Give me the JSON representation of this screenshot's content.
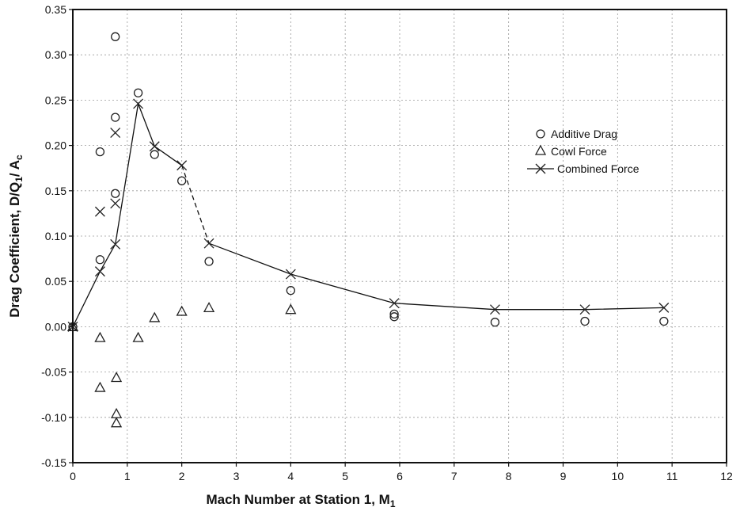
{
  "chart_data": {
    "type": "scatter",
    "xlabel": "Mach Number at Station 1, M",
    "xlabel_sub": "1",
    "ylabel": "Drag Coefficient, D/Q",
    "ylabel_sub1": "1",
    "ylabel_mid": "/ A",
    "ylabel_sub2": "c",
    "xlim": [
      0,
      12
    ],
    "ylim": [
      -0.15,
      0.35
    ],
    "x_ticks": [
      "0",
      "1",
      "2",
      "3",
      "4",
      "5",
      "6",
      "7",
      "8",
      "9",
      "10",
      "11",
      "12"
    ],
    "y_ticks": [
      "0.35",
      "0.30",
      "0.25",
      "0.20",
      "0.15",
      "0.10",
      "0.05",
      "0.00",
      "-0.05",
      "-0.10",
      "-0.15"
    ],
    "grid": true,
    "legend_position": "right",
    "series": [
      {
        "name": "Additive Drag",
        "marker": "circle",
        "points": [
          [
            0,
            0.0
          ],
          [
            0.5,
            0.193
          ],
          [
            0.5,
            0.074
          ],
          [
            0.78,
            0.32
          ],
          [
            0.78,
            0.231
          ],
          [
            0.78,
            0.147
          ],
          [
            1.2,
            0.258
          ],
          [
            1.5,
            0.19
          ],
          [
            2.0,
            0.161
          ],
          [
            2.5,
            0.072
          ],
          [
            4.0,
            0.04
          ],
          [
            5.9,
            0.014
          ],
          [
            5.9,
            0.011
          ],
          [
            7.75,
            0.005
          ],
          [
            9.4,
            0.006
          ],
          [
            10.85,
            0.006
          ]
        ]
      },
      {
        "name": "Cowl Force",
        "marker": "triangle",
        "points": [
          [
            0,
            0.0
          ],
          [
            0.5,
            -0.012
          ],
          [
            0.5,
            -0.067
          ],
          [
            0.8,
            -0.056
          ],
          [
            0.8,
            -0.096
          ],
          [
            0.8,
            -0.106
          ],
          [
            1.2,
            -0.012
          ],
          [
            1.5,
            0.01
          ],
          [
            2.0,
            0.017
          ],
          [
            2.5,
            0.021
          ],
          [
            4.0,
            0.019
          ]
        ]
      },
      {
        "name": "Combined Force",
        "marker": "x",
        "points": [
          [
            0,
            0.0
          ],
          [
            0.5,
            0.127
          ],
          [
            0.5,
            0.061
          ],
          [
            0.78,
            0.214
          ],
          [
            0.78,
            0.136
          ],
          [
            0.78,
            0.091
          ],
          [
            1.2,
            0.246
          ],
          [
            1.5,
            0.199
          ],
          [
            2.0,
            0.178
          ],
          [
            2.5,
            0.092
          ],
          [
            4.0,
            0.058
          ],
          [
            5.9,
            0.026
          ],
          [
            7.75,
            0.019
          ],
          [
            9.4,
            0.019
          ],
          [
            10.85,
            0.021
          ]
        ],
        "line": [
          [
            0,
            0.0
          ],
          [
            0.5,
            0.061
          ],
          [
            0.78,
            0.091
          ],
          [
            1.2,
            0.246
          ],
          [
            1.5,
            0.199
          ],
          [
            2.0,
            0.178
          ]
        ],
        "dashed_line": [
          [
            2.0,
            0.178
          ],
          [
            2.5,
            0.092
          ]
        ],
        "line2": [
          [
            2.5,
            0.092
          ],
          [
            4.0,
            0.058
          ],
          [
            5.9,
            0.026
          ],
          [
            7.75,
            0.019
          ],
          [
            9.4,
            0.019
          ],
          [
            10.85,
            0.021
          ]
        ]
      }
    ]
  }
}
